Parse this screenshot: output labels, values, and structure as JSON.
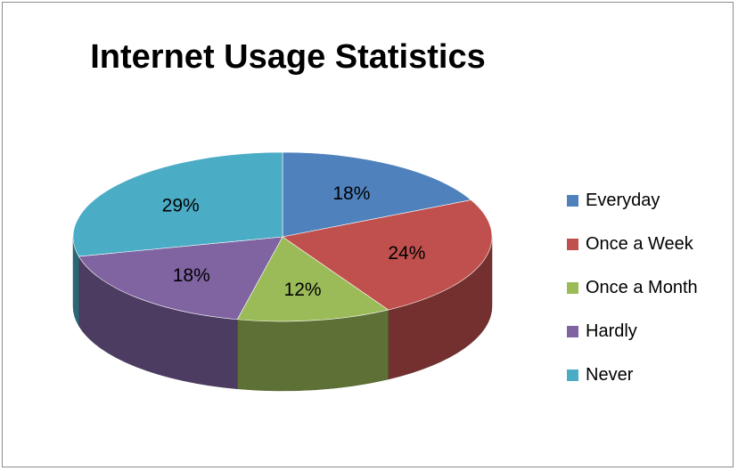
{
  "chart_data": {
    "type": "pie",
    "title": "Internet Usage Statistics",
    "three_d": true,
    "legend_position": "right",
    "slices": [
      {
        "label": "Everyday",
        "value": 18,
        "display": "18%",
        "color": "#4F81BD"
      },
      {
        "label": "Once a Week",
        "value": 24,
        "display": "24%",
        "color": "#C0504D"
      },
      {
        "label": "Once a Month",
        "value": 12,
        "display": "12%",
        "color": "#9BBB59"
      },
      {
        "label": "Hardly",
        "value": 18,
        "display": "18%",
        "color": "#8064A2"
      },
      {
        "label": "Never",
        "value": 29,
        "display": "29%",
        "color": "#4BACC6"
      }
    ]
  }
}
